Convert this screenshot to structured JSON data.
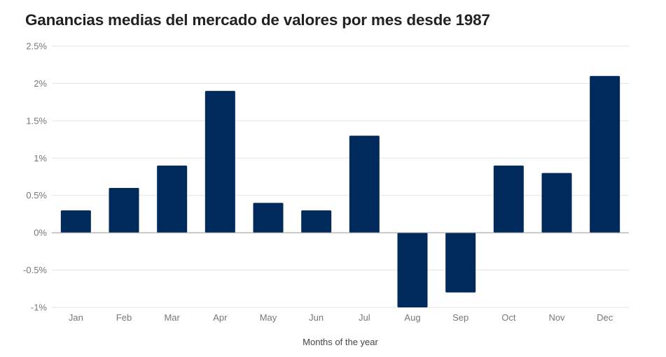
{
  "chart_data": {
    "type": "bar",
    "title": "Ganancias medias del mercado de valores por mes desde 1987",
    "xlabel": "Months of the year",
    "ylabel": "",
    "categories": [
      "Jan",
      "Feb",
      "Mar",
      "Apr",
      "May",
      "Jun",
      "Jul",
      "Aug",
      "Sep",
      "Oct",
      "Nov",
      "Dec"
    ],
    "values": [
      0.3,
      0.6,
      0.9,
      1.9,
      0.4,
      0.3,
      1.3,
      -1.0,
      -0.8,
      0.9,
      0.8,
      2.1
    ],
    "ylim": [
      -1,
      2.5
    ],
    "yticks": [
      2.5,
      2,
      1.5,
      1,
      0.5,
      0,
      -0.5,
      -1
    ],
    "ytick_labels": [
      "2.5%",
      "2%",
      "1.5%",
      "1%",
      "0.5%",
      "0%",
      "-0.5%",
      "-1%"
    ],
    "grid": true,
    "bar_color": "#002a5c"
  }
}
